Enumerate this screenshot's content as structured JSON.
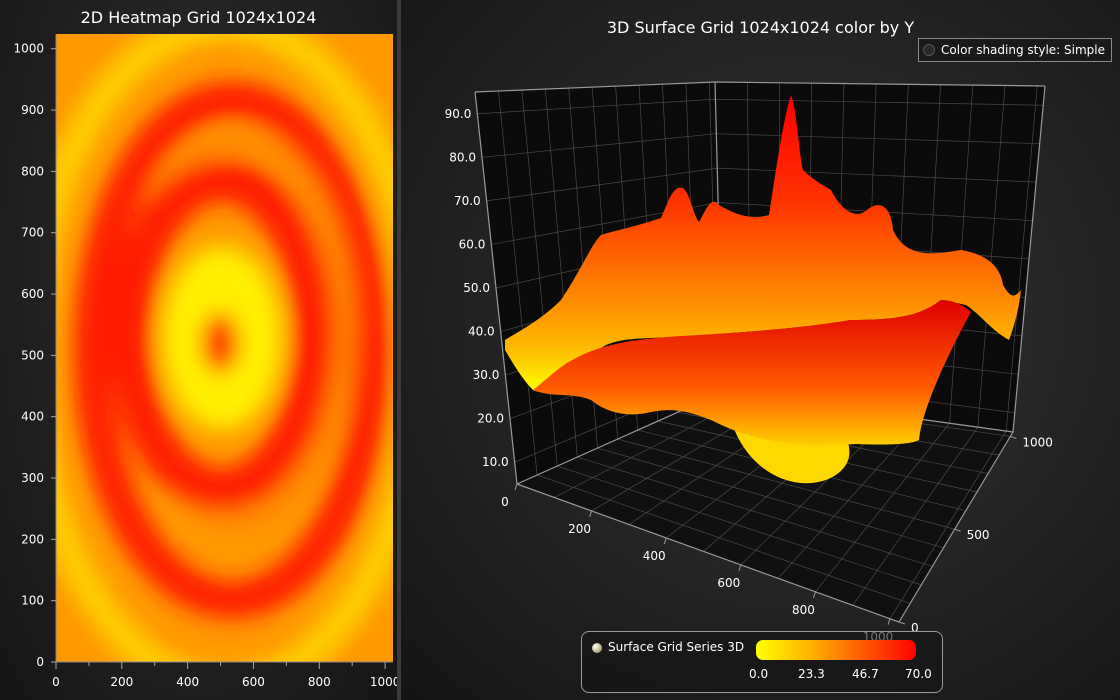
{
  "heatmap": {
    "title": "2D Heatmap Grid 1024x1024"
  },
  "surface": {
    "title": "3D Surface Grid 1024x1024 color by Y",
    "shading_label": "Color shading style: Simple",
    "legend": {
      "series_name": "Surface Grid Series 3D",
      "ticks": [
        "0.0",
        "23.3",
        "46.7",
        "70.0"
      ]
    }
  },
  "colors": {
    "low": "#ffff00",
    "mid": "#ff9900",
    "high": "#ff0000"
  },
  "chart_data": [
    {
      "type": "heatmap",
      "title": "2D Heatmap Grid 1024x1024",
      "xlim": [
        0,
        1024
      ],
      "ylim": [
        0,
        1024
      ],
      "x_ticks": [
        "0",
        "200",
        "400",
        "600",
        "800",
        "1000"
      ],
      "y_ticks": [
        "0",
        "100",
        "200",
        "300",
        "400",
        "500",
        "600",
        "700",
        "800",
        "900",
        "1000"
      ],
      "colorscale": [
        "#ffff00",
        "#ff9900",
        "#ff0000"
      ],
      "grid": false
    },
    {
      "type": "surface",
      "title": "3D Surface Grid 1024x1024 color by Y",
      "x_ticks": [
        "0",
        "200",
        "400",
        "600",
        "800",
        "1000"
      ],
      "y_ticks": [
        "10.0",
        "20.0",
        "30.0",
        "40.0",
        "50.0",
        "60.0",
        "70.0",
        "80.0",
        "90.0"
      ],
      "z_ticks": [
        "0",
        "500",
        "1000"
      ],
      "xlim": [
        0,
        1024
      ],
      "ylim": [
        5,
        95
      ],
      "zlim": [
        0,
        1024
      ],
      "color_range": [
        0,
        70
      ],
      "colorscale": [
        "#ffff00",
        "#ff9900",
        "#ff0000"
      ],
      "legend_position": "bottom-center",
      "grid": true
    }
  ]
}
